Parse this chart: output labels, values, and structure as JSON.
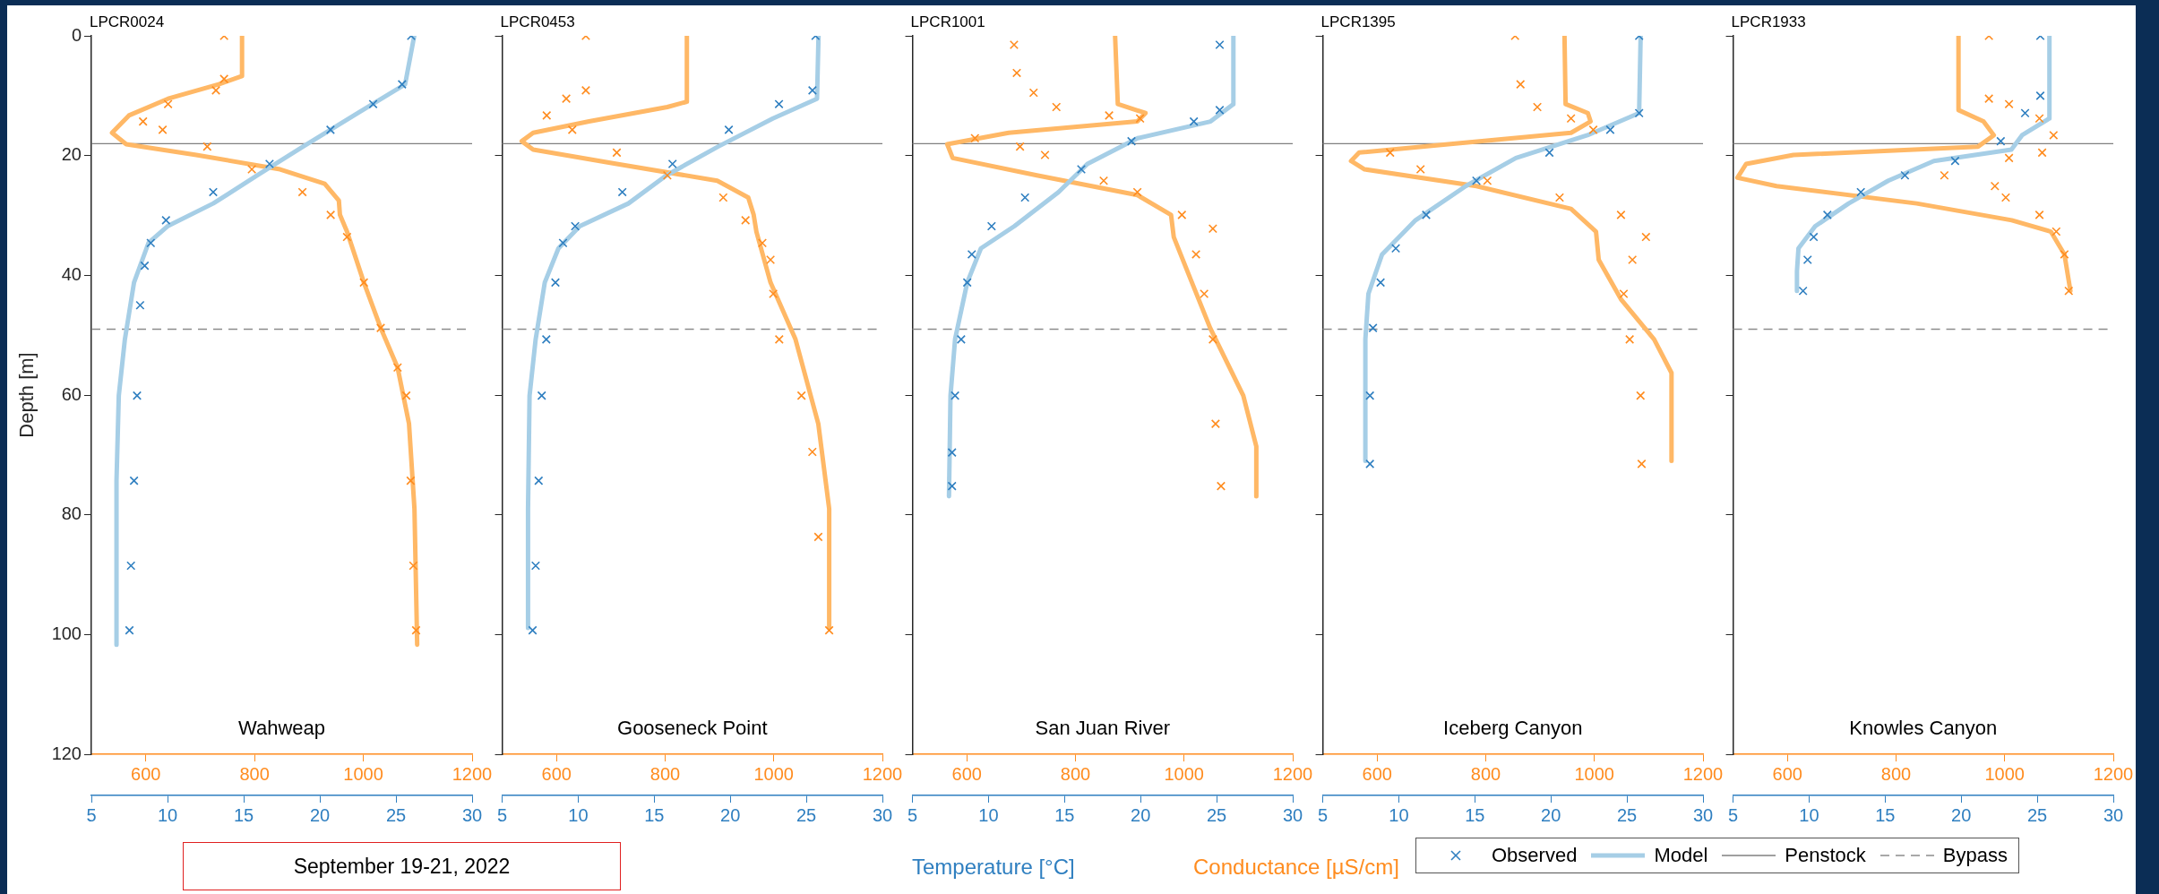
{
  "chart_data": [
    {
      "type": "scatter",
      "title": "LPCR0024",
      "subtitle": "Wahweap",
      "ylabel": "Depth [m]",
      "annotations": [
        "September 19-21, 2022"
      ],
      "ylim": [
        120,
        0
      ],
      "yticks": [
        0,
        20,
        40,
        60,
        80,
        100,
        120
      ],
      "xlim": [
        5,
        30
      ],
      "xticks": [
        5,
        10,
        15,
        20,
        25,
        30
      ],
      "x2lim": [
        500,
        1200
      ],
      "x2ticks": [
        600,
        800,
        1000,
        1200
      ],
      "ref_lines": [
        {
          "axis": "y",
          "value": 18,
          "color": "#808080",
          "line_style": "solid"
        },
        {
          "axis": "y",
          "value": 49,
          "color": "#8c8c8c",
          "line_style": "dashed"
        }
      ],
      "series": [
        {
          "type": "scatter",
          "marker": "cross",
          "color": "#2f7fc0",
          "x": [
            26.0,
            25.4,
            23.5,
            20.7,
            16.7,
            13.0,
            9.9,
            8.9,
            8.5,
            8.2,
            8.0,
            7.8,
            7.6,
            7.5
          ],
          "values": [
            0,
            8.1,
            11.4,
            15.7,
            21.4,
            26.1,
            30.8,
            34.6,
            38.4,
            45,
            60.1,
            74.3,
            88.5,
            99.3
          ]
        },
        {
          "type": "line",
          "marker": "none",
          "color": "#a6cee6",
          "x": [
            26.2,
            25.6,
            22.5,
            18.9,
            15.9,
            13.0,
            10.0,
            8.75,
            7.8,
            7.2,
            6.8,
            6.65,
            6.65
          ],
          "values": [
            0,
            8.1,
            12.9,
            18.5,
            23.3,
            28,
            31.8,
            34.6,
            41.2,
            50.7,
            60.1,
            74.3,
            101.7
          ]
        },
        {
          "type": "scatter",
          "axis": "x2",
          "marker": "cross",
          "color": "#ff8c1f",
          "x": [
            744,
            744,
            729,
            641,
            595,
            631,
            713,
            795,
            888,
            940,
            970,
            1001,
            1032,
            1063,
            1079,
            1087,
            1092,
            1097
          ],
          "values": [
            0,
            7.2,
            9.1,
            11.4,
            14.3,
            15.7,
            18.5,
            22.3,
            26.1,
            29.9,
            33.6,
            41.2,
            48.8,
            55.4,
            60.1,
            74.3,
            88.5,
            99.3
          ]
        },
        {
          "type": "line",
          "axis": "x2",
          "marker": "none",
          "color": "#ffb866",
          "x": [
            777,
            777,
            734,
            641,
            569,
            538,
            564,
            693,
            847,
            929,
            955,
            957,
            970,
            1001,
            1032,
            1063,
            1084,
            1094,
            1099
          ],
          "values": [
            0,
            6.7,
            8.1,
            10.5,
            13.3,
            16.2,
            18.1,
            19.9,
            22.3,
            24.7,
            27.5,
            29.9,
            32.7,
            41.2,
            48.8,
            55.4,
            64.8,
            79,
            101.7
          ]
        }
      ]
    },
    {
      "type": "scatter",
      "title": "LPCR0453",
      "subtitle": "Gooseneck Point",
      "tick_labels": "x",
      "ylim": [
        120,
        0
      ],
      "yticks": [
        0,
        20,
        40,
        60,
        80,
        100,
        120
      ],
      "xlim": [
        5,
        30
      ],
      "xticks": [
        5,
        10,
        15,
        20,
        25,
        30
      ],
      "x2lim": [
        500,
        1200
      ],
      "x2ticks": [
        600,
        800,
        1000,
        1200
      ],
      "ref_lines": [
        {
          "axis": "y",
          "value": 18,
          "color": "#808080",
          "line_style": "solid"
        },
        {
          "axis": "y",
          "value": 49,
          "color": "#8c8c8c",
          "line_style": "dashed"
        }
      ],
      "series": [
        {
          "type": "scatter",
          "marker": "cross",
          "color": "#2f7fc0",
          "x": [
            25.6,
            25.4,
            23.2,
            19.9,
            16.2,
            12.9,
            9.8,
            9.0,
            8.5,
            7.9,
            7.6,
            7.4,
            7.2,
            7.0
          ],
          "values": [
            0,
            9.1,
            11.4,
            15.7,
            21.4,
            26.1,
            31.8,
            34.6,
            41.2,
            50.7,
            60.1,
            74.3,
            88.5,
            99.3
          ]
        },
        {
          "type": "line",
          "marker": "none",
          "color": "#a6cee6",
          "x": [
            25.8,
            25.7,
            22.8,
            19.2,
            15.8,
            13.3,
            10.1,
            8.7,
            7.8,
            7.2,
            6.8,
            6.7,
            6.7
          ],
          "values": [
            0,
            10.5,
            13.8,
            18.5,
            23.3,
            28,
            31.8,
            35.5,
            41.2,
            50.7,
            60.1,
            79,
            98.9
          ]
        },
        {
          "type": "scatter",
          "axis": "x2",
          "marker": "cross",
          "color": "#ff8c1f",
          "x": [
            654,
            654,
            618,
            582,
            629,
            711,
            804,
            907,
            948,
            979,
            994,
            999,
            1010,
            1051,
            1071,
            1082,
            1102
          ],
          "values": [
            0,
            9.1,
            10.5,
            13.3,
            15.7,
            19.5,
            23.3,
            27,
            30.8,
            34.6,
            37.4,
            43.1,
            50.7,
            60.1,
            69.5,
            83.7,
            99.3
          ]
        },
        {
          "type": "line",
          "axis": "x2",
          "marker": "none",
          "color": "#ffb866",
          "x": [
            840,
            840,
            804,
            660,
            557,
            536,
            557,
            711,
            896,
            953,
            963,
            968,
            994,
            1040,
            1082,
            1102,
            1102
          ],
          "values": [
            0,
            11,
            11.9,
            14.3,
            16.2,
            17.6,
            19,
            21.4,
            24.2,
            27,
            29.9,
            32.7,
            41.2,
            50.7,
            64.8,
            79,
            98.9
          ]
        }
      ]
    },
    {
      "type": "scatter",
      "title": "LPCR1001",
      "subtitle": "San Juan River",
      "tick_labels": "x",
      "xlabel": "Temperature [°C]",
      "x2label": "Conductance [µS/cm]",
      "ylim": [
        120,
        0
      ],
      "yticks": [
        0,
        20,
        40,
        60,
        80,
        100,
        120
      ],
      "xlim": [
        5,
        30
      ],
      "xticks": [
        5,
        10,
        15,
        20,
        25,
        30
      ],
      "x2lim": [
        500,
        1200
      ],
      "x2ticks": [
        600,
        800,
        1000,
        1200
      ],
      "ref_lines": [
        {
          "axis": "y",
          "value": 18,
          "color": "#808080",
          "line_style": "solid"
        },
        {
          "axis": "y",
          "value": 49,
          "color": "#8c8c8c",
          "line_style": "dashed"
        }
      ],
      "series": [
        {
          "type": "scatter",
          "marker": "cross",
          "color": "#2f7fc0",
          "x": [
            25.2,
            25.2,
            23.5,
            19.4,
            16.1,
            12.4,
            10.2,
            8.9,
            8.6,
            8.2,
            7.8,
            7.6,
            7.6
          ],
          "values": [
            1.5,
            12.4,
            14.3,
            17.6,
            22.3,
            27,
            31.8,
            36.5,
            41.2,
            50.7,
            60.1,
            69.6,
            75.2
          ]
        },
        {
          "type": "line",
          "marker": "none",
          "color": "#a6cee6",
          "x": [
            26.1,
            26.1,
            24.6,
            19.8,
            16.5,
            14.6,
            11.7,
            9.5,
            8.6,
            7.8,
            7.5,
            7.4
          ],
          "values": [
            0,
            11.4,
            14.3,
            17.1,
            21.4,
            26.1,
            31.8,
            35.5,
            41.2,
            50.7,
            60.1,
            76.9
          ]
        },
        {
          "type": "scatter",
          "axis": "x2",
          "marker": "cross",
          "color": "#ff8c1f",
          "x": [
            687,
            692,
            723,
            765,
            862,
            919,
            615,
            698,
            744,
            852,
            914,
            996,
            1053,
            1022,
            1037,
            1053,
            1058,
            1068
          ],
          "values": [
            1.5,
            6.2,
            9.5,
            11.9,
            13.3,
            13.8,
            17.1,
            18.5,
            19.9,
            24.2,
            26.1,
            29.9,
            32.2,
            36.5,
            43.1,
            50.7,
            64.8,
            75.2
          ]
        },
        {
          "type": "line",
          "axis": "x2",
          "marker": "none",
          "color": "#ffb866",
          "x": [
            873,
            878,
            929,
            914,
            677,
            564,
            574,
            729,
            914,
            976,
            981,
            1006,
            1048,
            1109,
            1133,
            1133
          ],
          "values": [
            0,
            11.4,
            12.9,
            14.3,
            16.2,
            18.1,
            20.4,
            23.3,
            26.6,
            29.9,
            33.6,
            39.3,
            48.8,
            60.1,
            68.6,
            76.9
          ]
        }
      ]
    },
    {
      "type": "scatter",
      "title": "LPCR1395",
      "subtitle": "Iceberg Canyon",
      "tick_labels": "x",
      "legend": "bottom right",
      "ylim": [
        120,
        0
      ],
      "yticks": [
        0,
        20,
        40,
        60,
        80,
        100,
        120
      ],
      "xlim": [
        5,
        30
      ],
      "xticks": [
        5,
        10,
        15,
        20,
        25,
        30
      ],
      "x2lim": [
        500,
        1200
      ],
      "x2ticks": [
        600,
        800,
        1000,
        1200
      ],
      "ref_lines": [
        {
          "axis": "y",
          "value": 18,
          "label": "Penstock",
          "color": "#808080",
          "line_style": "solid"
        },
        {
          "axis": "y",
          "value": 49,
          "label": "Bypass",
          "color": "#8c8c8c",
          "line_style": "dashed"
        }
      ],
      "series": [
        {
          "name": "Observed",
          "type": "scatter",
          "marker": "cross",
          "color": "#2f7fc0",
          "x": [
            25.8,
            25.8,
            23.9,
            19.9,
            15.1,
            11.8,
            9.8,
            8.8,
            8.3,
            8.1,
            8.1
          ],
          "values": [
            0,
            12.9,
            15.7,
            19.5,
            24.2,
            29.9,
            35.5,
            41.2,
            48.8,
            60.1,
            71.5
          ]
        },
        {
          "name": "Model",
          "type": "line",
          "marker": "none",
          "color": "#a6cee6",
          "x": [
            25.9,
            25.8,
            22.4,
            17.7,
            14.4,
            11.1,
            8.9,
            8.0,
            7.8,
            7.8
          ],
          "values": [
            0,
            12.9,
            16.6,
            20.4,
            25.1,
            30.8,
            36.5,
            43.1,
            50.7,
            71
          ]
        },
        {
          "type": "scatter",
          "axis": "x2",
          "marker": "cross",
          "color": "#ff8c1f",
          "x": [
            854,
            864,
            895,
            957,
            998,
            624,
            680,
            803,
            936,
            1049,
            1095,
            1070,
            1054,
            1065,
            1085,
            1087
          ],
          "values": [
            0,
            8.1,
            11.9,
            13.8,
            15.7,
            19.5,
            22.3,
            24.2,
            27,
            29.9,
            33.6,
            37.4,
            43.1,
            50.7,
            60.1,
            71.5
          ]
        },
        {
          "type": "line",
          "axis": "x2",
          "marker": "none",
          "color": "#ffb866",
          "x": [
            945,
            947,
            988,
            993,
            957,
            731,
            567,
            552,
            577,
            783,
            957,
            1003,
            1008,
            1049,
            1110,
            1142,
            1142
          ],
          "values": [
            0,
            11.4,
            12.9,
            14.3,
            16.2,
            18.1,
            19.5,
            20.9,
            22.3,
            25.1,
            28.9,
            32.7,
            37.4,
            44,
            50.7,
            56.3,
            71
          ]
        }
      ]
    },
    {
      "type": "scatter",
      "title": "LPCR1933",
      "subtitle": "Knowles Canyon",
      "tick_labels": "x",
      "ylim": [
        120,
        0
      ],
      "yticks": [
        0,
        20,
        40,
        60,
        80,
        100,
        120
      ],
      "xlim": [
        5,
        30
      ],
      "xticks": [
        5,
        10,
        15,
        20,
        25,
        30
      ],
      "x2lim": [
        500,
        1200
      ],
      "x2ticks": [
        600,
        800,
        1000,
        1200
      ],
      "ref_lines": [
        {
          "axis": "y",
          "value": 18,
          "color": "#808080",
          "line_style": "solid"
        },
        {
          "axis": "y",
          "value": 49,
          "color": "#8c8c8c",
          "line_style": "dashed"
        }
      ],
      "series": [
        {
          "type": "scatter",
          "marker": "cross",
          "color": "#2f7fc0",
          "x": [
            25.2,
            25.2,
            24.2,
            22.6,
            19.6,
            16.3,
            13.4,
            11.2,
            10.3,
            9.9,
            9.6
          ],
          "values": [
            0,
            10,
            12.9,
            17.6,
            20.9,
            23.3,
            26.1,
            29.9,
            33.6,
            37.4,
            42.6
          ]
        },
        {
          "type": "line",
          "marker": "none",
          "color": "#a6cee6",
          "x": [
            25.8,
            25.8,
            24.0,
            23.3,
            18.2,
            15.2,
            12.6,
            10.4,
            9.3,
            9.2,
            9.2
          ],
          "values": [
            0,
            13.8,
            16.6,
            19,
            20.9,
            24.2,
            28,
            31.8,
            35.5,
            39.3,
            42.6
          ]
        },
        {
          "type": "scatter",
          "axis": "x2",
          "marker": "cross",
          "color": "#ff8c1f",
          "x": [
            971,
            971,
            1008,
            1064,
            1090,
            1069,
            1008,
            889,
            982,
            1002,
            1064,
            1095,
            1110,
            1118
          ],
          "values": [
            0,
            10.5,
            11.4,
            13.8,
            16.6,
            19.5,
            20.4,
            23.3,
            25.1,
            27,
            29.9,
            32.7,
            36.5,
            42.6
          ]
        },
        {
          "type": "line",
          "axis": "x2",
          "marker": "none",
          "color": "#ffb866",
          "x": [
            915,
            915,
            961,
            980,
            951,
            611,
            524,
            508,
            580,
            838,
            1013,
            1085,
            1110,
            1121
          ],
          "values": [
            0,
            12.4,
            14.3,
            16.6,
            18.5,
            19.9,
            21.4,
            23.7,
            25.1,
            28,
            30.8,
            32.7,
            36.5,
            42.6
          ]
        }
      ]
    }
  ]
}
